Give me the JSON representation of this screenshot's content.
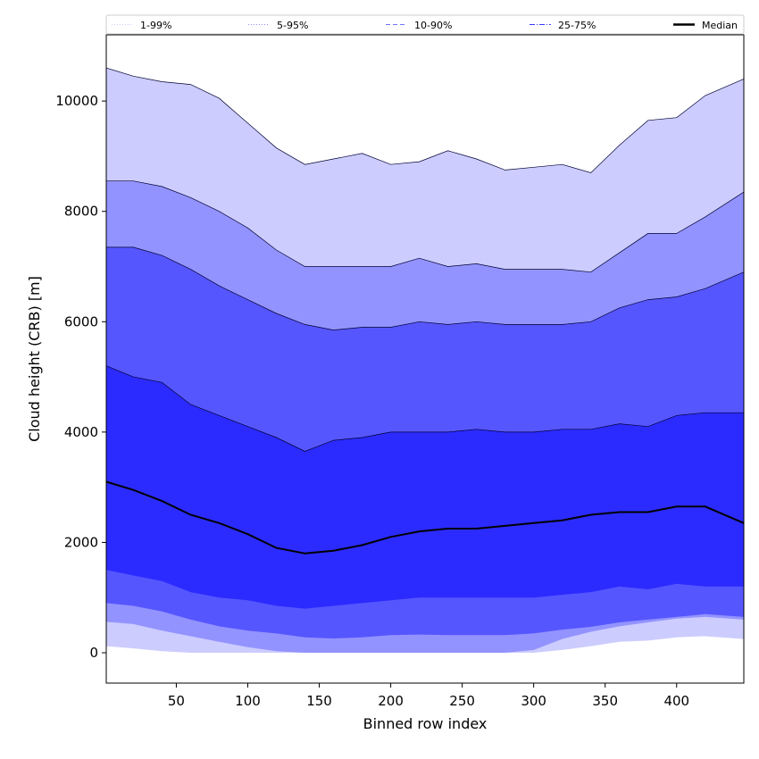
{
  "chart_data": {
    "type": "area",
    "xlabel": "Binned row index",
    "ylabel": "Cloud height (CRB) [m]",
    "xlim": [
      1,
      447
    ],
    "ylim": [
      -550,
      11200
    ],
    "x_ticks": [
      50,
      100,
      150,
      200,
      250,
      300,
      350,
      400
    ],
    "y_ticks": [
      0,
      2000,
      4000,
      6000,
      8000,
      10000
    ],
    "x_tick_labels": [
      "50",
      "100",
      "150",
      "200",
      "250",
      "300",
      "350",
      "400"
    ],
    "y_tick_labels": [
      "0",
      "2000",
      "4000",
      "6000",
      "8000",
      "10000"
    ],
    "grid": false,
    "legend": {
      "placement": "top",
      "entries": [
        {
          "label": "1-99%",
          "style": "dotted",
          "color": "#d0d0ff"
        },
        {
          "label": "5-95%",
          "style": "dotted",
          "color": "#8a8aff"
        },
        {
          "label": "10-90%",
          "style": "dashed",
          "color": "#6f6fff"
        },
        {
          "label": "25-75%",
          "style": "dashdot",
          "color": "#3a3aff"
        },
        {
          "label": "Median",
          "style": "solid",
          "color": "#000000"
        }
      ]
    },
    "x": [
      1,
      20,
      40,
      60,
      80,
      100,
      120,
      140,
      160,
      180,
      200,
      220,
      240,
      260,
      280,
      300,
      320,
      340,
      360,
      380,
      400,
      420,
      447
    ],
    "bands": [
      {
        "name": "1-99%",
        "color": "#ccccff",
        "lower": [
          120,
          80,
          30,
          0,
          0,
          0,
          0,
          0,
          0,
          0,
          0,
          0,
          0,
          0,
          0,
          0,
          50,
          120,
          200,
          220,
          280,
          300,
          250
        ],
        "upper": [
          10600,
          10450,
          10350,
          10300,
          10050,
          9600,
          9150,
          8850,
          8950,
          9050,
          8850,
          8900,
          9100,
          8950,
          8750,
          8800,
          8850,
          8700,
          9200,
          9650,
          9700,
          10100,
          10400
        ]
      },
      {
        "name": "5-95%",
        "color": "#9393ff",
        "lower": [
          560,
          520,
          400,
          300,
          200,
          100,
          30,
          0,
          0,
          0,
          0,
          0,
          0,
          0,
          0,
          50,
          250,
          380,
          480,
          550,
          620,
          650,
          600
        ],
        "upper": [
          8550,
          8550,
          8450,
          8250,
          8000,
          7700,
          7300,
          7000,
          7000,
          7000,
          7000,
          7150,
          7000,
          7050,
          6950,
          6950,
          6950,
          6900,
          7250,
          7600,
          7600,
          7900,
          8350
        ]
      },
      {
        "name": "10-90%",
        "color": "#5656ff",
        "lower": [
          900,
          850,
          750,
          600,
          480,
          400,
          350,
          280,
          260,
          280,
          320,
          330,
          320,
          320,
          320,
          350,
          420,
          470,
          550,
          600,
          650,
          700,
          650
        ],
        "upper": [
          7350,
          7350,
          7200,
          6950,
          6650,
          6400,
          6150,
          5950,
          5850,
          5900,
          5900,
          6000,
          5950,
          6000,
          5950,
          5950,
          5950,
          6000,
          6250,
          6400,
          6450,
          6600,
          6900
        ]
      },
      {
        "name": "25-75%",
        "color": "#2b2bff",
        "lower": [
          1500,
          1400,
          1300,
          1100,
          1000,
          950,
          850,
          800,
          850,
          900,
          950,
          1000,
          1000,
          1000,
          1000,
          1000,
          1050,
          1100,
          1200,
          1150,
          1250,
          1200,
          1200
        ],
        "upper": [
          5200,
          5000,
          4900,
          4500,
          4300,
          4100,
          3900,
          3650,
          3850,
          3900,
          4000,
          4000,
          4000,
          4050,
          4000,
          4000,
          4050,
          4050,
          4150,
          4100,
          4300,
          4350,
          4350
        ]
      }
    ],
    "series": [
      {
        "name": "Median",
        "color": "#000000",
        "values": [
          3100,
          2950,
          2750,
          2500,
          2350,
          2150,
          1900,
          1800,
          1850,
          1950,
          2100,
          2200,
          2250,
          2250,
          2300,
          2350,
          2400,
          2500,
          2550,
          2550,
          2650,
          2650,
          2350
        ]
      }
    ]
  }
}
